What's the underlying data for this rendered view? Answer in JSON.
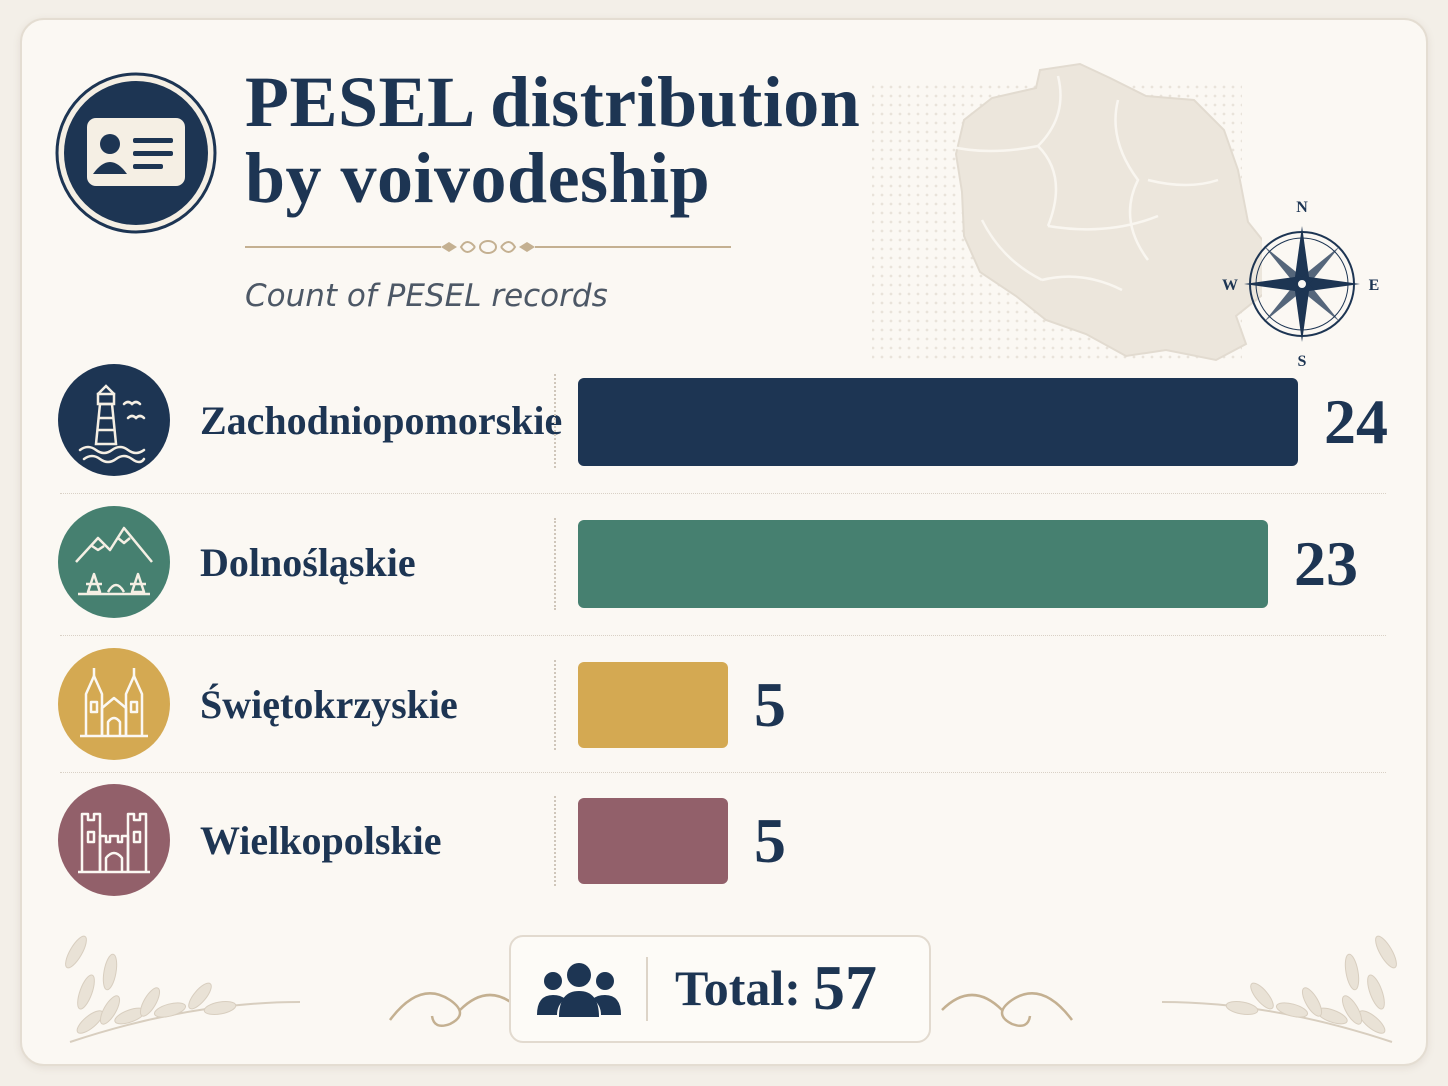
{
  "header": {
    "title_line1": "PESEL distribution",
    "title_line2": "by voivodeship",
    "subtitle": "Count of PESEL records"
  },
  "compass": {
    "n": "N",
    "e": "E",
    "s": "S",
    "w": "W"
  },
  "colors": {
    "navy": "#1d3553",
    "green": "#468070",
    "gold": "#d4a952",
    "mauve": "#92606a"
  },
  "icons": {
    "header": "id-card-icon",
    "rows": [
      "lighthouse-icon",
      "mountains-icon",
      "church-icon",
      "castle-icon"
    ],
    "total": "people-icon"
  },
  "chart_data": {
    "type": "bar",
    "orientation": "horizontal",
    "title": "PESEL distribution by voivodeship",
    "subtitle": "Count of PESEL records",
    "categories": [
      "Zachodniopomorskie",
      "Dolnośląskie",
      "Świętokrzyskie",
      "Wielkopolskie"
    ],
    "values": [
      24,
      23,
      5,
      5
    ],
    "value_labels": [
      "24",
      "23",
      "5",
      "5"
    ],
    "bar_colors": [
      "#1d3553",
      "#468070",
      "#d4a952",
      "#92606a"
    ],
    "xlim": [
      0,
      24
    ],
    "grid": false,
    "legend": "none"
  },
  "total": {
    "label": "Total:",
    "value": "57"
  }
}
